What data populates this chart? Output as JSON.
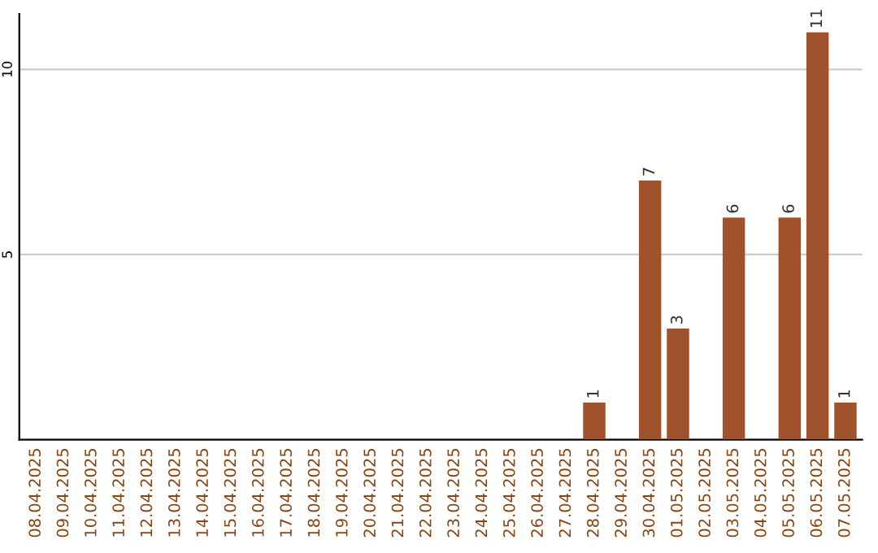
{
  "chart_data": {
    "type": "bar",
    "categories": [
      "08.04.2025",
      "09.04.2025",
      "10.04.2025",
      "11.04.2025",
      "12.04.2025",
      "13.04.2025",
      "14.04.2025",
      "15.04.2025",
      "16.04.2025",
      "17.04.2025",
      "18.04.2025",
      "19.04.2025",
      "20.04.2025",
      "21.04.2025",
      "22.04.2025",
      "23.04.2025",
      "24.04.2025",
      "25.04.2025",
      "26.04.2025",
      "27.04.2025",
      "28.04.2025",
      "29.04.2025",
      "30.04.2025",
      "01.05.2025",
      "02.05.2025",
      "03.05.2025",
      "04.05.2025",
      "05.05.2025",
      "06.05.2025",
      "07.05.2025"
    ],
    "values": [
      0,
      0,
      0,
      0,
      0,
      0,
      0,
      0,
      0,
      0,
      0,
      0,
      0,
      0,
      0,
      0,
      0,
      0,
      0,
      0,
      1,
      0,
      7,
      3,
      0,
      6,
      0,
      6,
      11,
      1
    ],
    "value_labels": [
      null,
      null,
      null,
      null,
      null,
      null,
      null,
      null,
      null,
      null,
      null,
      null,
      null,
      null,
      null,
      null,
      null,
      null,
      null,
      null,
      "1",
      null,
      "7",
      "3",
      null,
      "6",
      null,
      "6",
      "11",
      "1"
    ],
    "color": "#a0522d",
    "ylim": [
      0,
      11.5
    ],
    "yticks": [
      5,
      10
    ],
    "grid": "y"
  }
}
